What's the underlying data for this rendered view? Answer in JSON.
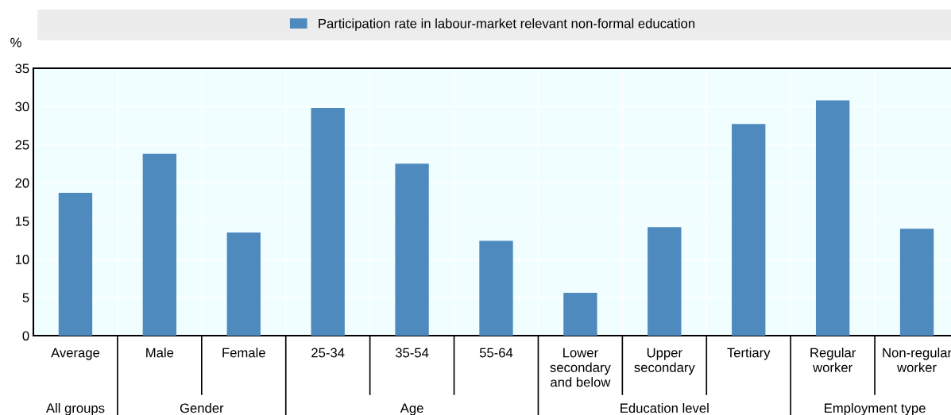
{
  "chart_data": {
    "type": "bar",
    "ylabel": "%",
    "categories": [
      "Average",
      "Male",
      "Female",
      "25-34",
      "35-54",
      "55-64",
      "Lower\nsecondary\nand below",
      "Upper\nsecondary",
      "Tertiary",
      "Regular\nworker",
      "Non-regular\nworker"
    ],
    "series": [
      {
        "name": "Participation rate in labour-market relevant non-formal education",
        "color": "#4f8abe",
        "values": [
          18.7,
          23.8,
          13.5,
          29.8,
          22.5,
          12.4,
          5.6,
          14.2,
          27.7,
          30.8,
          14.0
        ]
      }
    ],
    "annotations": [
      "All groups",
      "Gender",
      "Age",
      "Education level",
      "Employment type"
    ],
    "ylim": [
      0,
      35
    ],
    "yticks": [
      0,
      5,
      10,
      15,
      20,
      25,
      30,
      35
    ],
    "grid": true,
    "legend": "top"
  }
}
